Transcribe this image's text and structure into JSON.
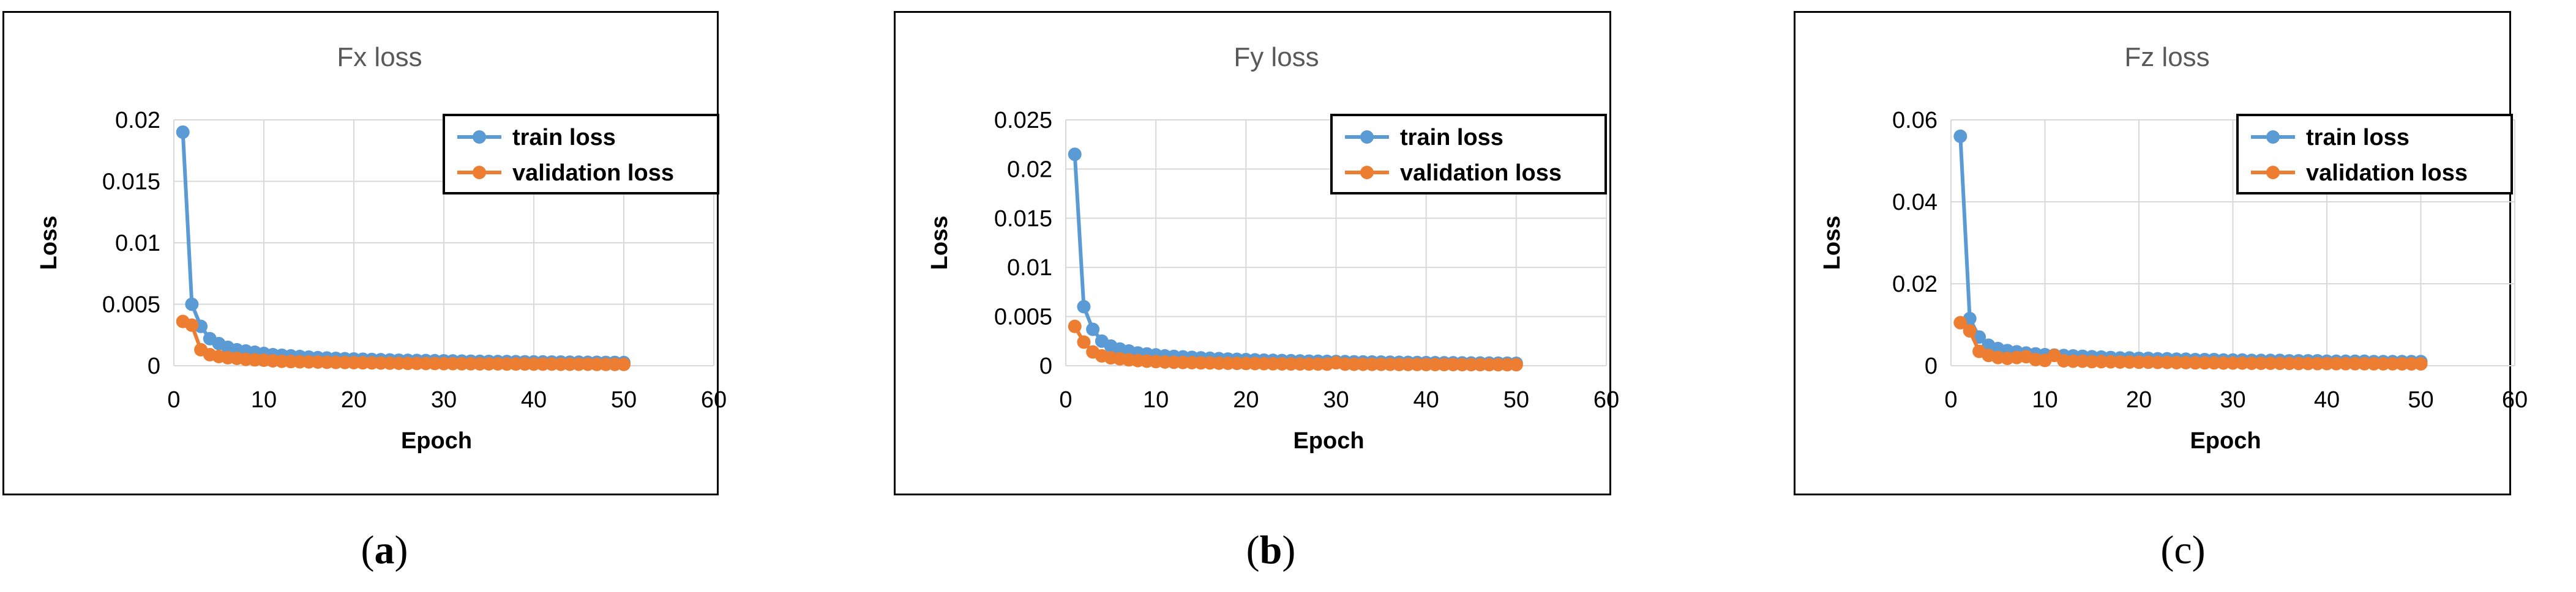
{
  "colors": {
    "train": "#5B9BD5",
    "validation": "#ED7D31",
    "grid": "#D9D9D9",
    "axis_text": "#595959"
  },
  "chart_data": [
    {
      "type": "line",
      "title": "Fx loss",
      "xlabel": "Epoch",
      "ylabel": "Loss",
      "xlim": [
        0,
        60
      ],
      "ylim": [
        0,
        0.02
      ],
      "xticks": [
        0,
        10,
        20,
        30,
        40,
        50,
        60
      ],
      "yticks": [
        0,
        0.005,
        0.01,
        0.015,
        0.02
      ],
      "ytick_labels": [
        "0",
        "0.005",
        "0.01",
        "0.015",
        "0.02"
      ],
      "legend_position": "top-right",
      "x": [
        1,
        2,
        3,
        4,
        5,
        6,
        7,
        8,
        9,
        10,
        11,
        12,
        13,
        14,
        15,
        16,
        17,
        18,
        19,
        20,
        21,
        22,
        23,
        24,
        25,
        26,
        27,
        28,
        29,
        30,
        31,
        32,
        33,
        34,
        35,
        36,
        37,
        38,
        39,
        40,
        41,
        42,
        43,
        44,
        45,
        46,
        47,
        48,
        49,
        50
      ],
      "series": [
        {
          "name": "train loss",
          "color_key": "train",
          "values": [
            0.019,
            0.005,
            0.0032,
            0.0022,
            0.0018,
            0.0015,
            0.0013,
            0.0012,
            0.0011,
            0.001,
            0.0009,
            0.00085,
            0.0008,
            0.00075,
            0.0007,
            0.00066,
            0.00063,
            0.0006,
            0.00057,
            0.00055,
            0.00053,
            0.00051,
            0.00049,
            0.00047,
            0.00045,
            0.00044,
            0.00043,
            0.00042,
            0.00041,
            0.0004,
            0.00039,
            0.00038,
            0.00037,
            0.00036,
            0.00035,
            0.00034,
            0.00034,
            0.00033,
            0.00032,
            0.00031,
            0.00031,
            0.0003,
            0.0003,
            0.00029,
            0.00029,
            0.00028,
            0.00028,
            0.00027,
            0.00027,
            0.00026
          ]
        },
        {
          "name": "validation loss",
          "color_key": "validation",
          "values": [
            0.0036,
            0.0033,
            0.0013,
            0.0009,
            0.00075,
            0.00065,
            0.0006,
            0.00052,
            0.00048,
            0.00045,
            0.0004,
            0.00036,
            0.00034,
            0.00032,
            0.00031,
            0.0003,
            0.00028,
            0.00027,
            0.00026,
            0.00025,
            0.00024,
            0.00023,
            0.00022,
            0.00021,
            0.0002,
            0.00019,
            0.00019,
            0.00018,
            0.00018,
            0.00017,
            0.00017,
            0.00016,
            0.00016,
            0.00015,
            0.00015,
            0.00015,
            0.00014,
            0.00014,
            0.00014,
            0.00013,
            0.00013,
            0.00013,
            0.00012,
            0.00012,
            0.00012,
            0.00012,
            0.00011,
            0.00011,
            0.00011,
            0.00011
          ]
        }
      ]
    },
    {
      "type": "line",
      "title": "Fy loss",
      "xlabel": "Epoch",
      "ylabel": "Loss",
      "xlim": [
        0,
        60
      ],
      "ylim": [
        0,
        0.025
      ],
      "xticks": [
        0,
        10,
        20,
        30,
        40,
        50,
        60
      ],
      "yticks": [
        0,
        0.005,
        0.01,
        0.015,
        0.02,
        0.025
      ],
      "ytick_labels": [
        "0",
        "0.005",
        "0.01",
        "0.015",
        "0.02",
        "0.025"
      ],
      "legend_position": "top-right",
      "x": [
        1,
        2,
        3,
        4,
        5,
        6,
        7,
        8,
        9,
        10,
        11,
        12,
        13,
        14,
        15,
        16,
        17,
        18,
        19,
        20,
        21,
        22,
        23,
        24,
        25,
        26,
        27,
        28,
        29,
        30,
        31,
        32,
        33,
        34,
        35,
        36,
        37,
        38,
        39,
        40,
        41,
        42,
        43,
        44,
        45,
        46,
        47,
        48,
        49,
        50
      ],
      "series": [
        {
          "name": "train loss",
          "color_key": "train",
          "values": [
            0.0215,
            0.006,
            0.0037,
            0.0025,
            0.002,
            0.0017,
            0.0015,
            0.0013,
            0.0012,
            0.0011,
            0.001,
            0.00095,
            0.0009,
            0.00085,
            0.0008,
            0.00076,
            0.00072,
            0.00068,
            0.00065,
            0.00062,
            0.0006,
            0.00057,
            0.00055,
            0.00053,
            0.00051,
            0.00049,
            0.00047,
            0.00046,
            0.00044,
            0.00043,
            0.00042,
            0.0004,
            0.00039,
            0.00038,
            0.00037,
            0.00036,
            0.00035,
            0.00034,
            0.00033,
            0.00032,
            0.00031,
            0.0003,
            0.0003,
            0.00029,
            0.00028,
            0.00028,
            0.00027,
            0.00026,
            0.00026,
            0.00025
          ]
        },
        {
          "name": "validation loss",
          "color_key": "validation",
          "values": [
            0.004,
            0.0024,
            0.0014,
            0.001,
            0.0008,
            0.0007,
            0.0006,
            0.00052,
            0.00046,
            0.00042,
            0.00038,
            0.00035,
            0.00033,
            0.00031,
            0.00029,
            0.00028,
            0.00026,
            0.00025,
            0.00024,
            0.00023,
            0.00022,
            0.00021,
            0.0002,
            0.00019,
            0.00018,
            0.00018,
            0.00017,
            0.00017,
            0.00016,
            0.0003,
            0.00016,
            0.00015,
            0.00015,
            0.00014,
            0.00014,
            0.00014,
            0.00013,
            0.00013,
            0.00013,
            0.00012,
            0.00012,
            0.00012,
            0.00012,
            0.00011,
            0.00011,
            0.00011,
            0.00011,
            0.0001,
            0.0001,
            0.0001
          ]
        }
      ]
    },
    {
      "type": "line",
      "title": "Fz loss",
      "xlabel": "Epoch",
      "ylabel": "Loss",
      "xlim": [
        0,
        60
      ],
      "ylim": [
        0,
        0.06
      ],
      "xticks": [
        0,
        10,
        20,
        30,
        40,
        50,
        60
      ],
      "yticks": [
        0,
        0.02,
        0.04,
        0.06
      ],
      "ytick_labels": [
        "0",
        "0.02",
        "0.04",
        "0.06"
      ],
      "legend_position": "top-right",
      "x": [
        1,
        2,
        3,
        4,
        5,
        6,
        7,
        8,
        9,
        10,
        11,
        12,
        13,
        14,
        15,
        16,
        17,
        18,
        19,
        20,
        21,
        22,
        23,
        24,
        25,
        26,
        27,
        28,
        29,
        30,
        31,
        32,
        33,
        34,
        35,
        36,
        37,
        38,
        39,
        40,
        41,
        42,
        43,
        44,
        45,
        46,
        47,
        48,
        49,
        50
      ],
      "series": [
        {
          "name": "train loss",
          "color_key": "train",
          "values": [
            0.056,
            0.0115,
            0.007,
            0.005,
            0.0042,
            0.0037,
            0.0034,
            0.0031,
            0.0029,
            0.0027,
            0.0026,
            0.0025,
            0.0024,
            0.0023,
            0.0022,
            0.0021,
            0.002,
            0.0019,
            0.0019,
            0.0018,
            0.0018,
            0.0017,
            0.0017,
            0.0016,
            0.0016,
            0.0015,
            0.0015,
            0.0015,
            0.0014,
            0.0014,
            0.0014,
            0.0013,
            0.0013,
            0.0013,
            0.0013,
            0.0012,
            0.0012,
            0.0012,
            0.0012,
            0.0011,
            0.0011,
            0.0011,
            0.0011,
            0.0011,
            0.001,
            0.001,
            0.001,
            0.001,
            0.001,
            0.001
          ]
        },
        {
          "name": "validation loss",
          "color_key": "validation",
          "values": [
            0.0105,
            0.0085,
            0.0035,
            0.0025,
            0.002,
            0.0018,
            0.002,
            0.0022,
            0.0015,
            0.0013,
            0.0025,
            0.0012,
            0.0011,
            0.0011,
            0.001,
            0.001,
            0.00095,
            0.0009,
            0.0009,
            0.00085,
            0.00085,
            0.0008,
            0.0008,
            0.00075,
            0.00075,
            0.0007,
            0.0007,
            0.0007,
            0.00065,
            0.00065,
            0.00065,
            0.0006,
            0.0006,
            0.0006,
            0.00058,
            0.00056,
            0.00055,
            0.00054,
            0.00053,
            0.00052,
            0.00051,
            0.0005,
            0.0005,
            0.00049,
            0.00048,
            0.00047,
            0.00047,
            0.00046,
            0.00045,
            0.00045
          ]
        }
      ]
    }
  ],
  "captions": [
    {
      "open": "(",
      "letter": "a",
      "close": ")"
    },
    {
      "open": "(",
      "letter": "b",
      "close": ")"
    },
    {
      "open": "(",
      "letter": "c",
      "close": ")"
    }
  ]
}
